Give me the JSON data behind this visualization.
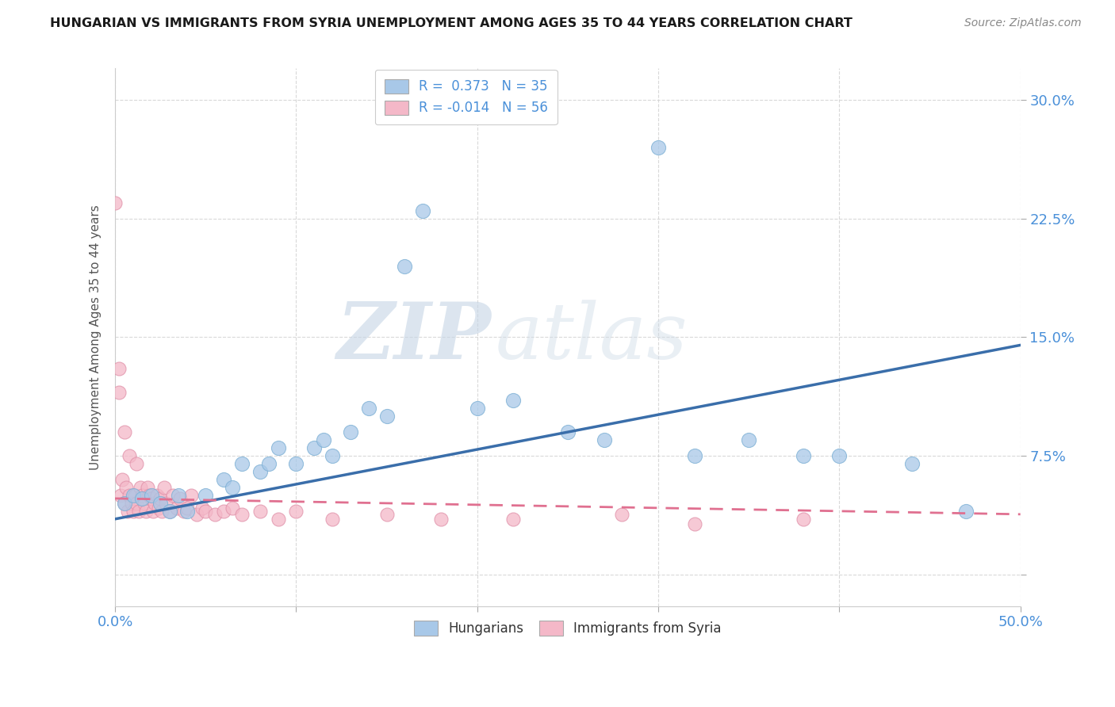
{
  "title": "HUNGARIAN VS IMMIGRANTS FROM SYRIA UNEMPLOYMENT AMONG AGES 35 TO 44 YEARS CORRELATION CHART",
  "source_text": "Source: ZipAtlas.com",
  "ylabel": "Unemployment Among Ages 35 to 44 years",
  "xlim": [
    0.0,
    0.5
  ],
  "ylim": [
    -0.02,
    0.32
  ],
  "yticks": [
    0.0,
    0.075,
    0.15,
    0.225,
    0.3
  ],
  "ytick_labels": [
    "",
    "7.5%",
    "15.0%",
    "22.5%",
    "30.0%"
  ],
  "background_color": "#ffffff",
  "grid_color": "#d0d0d0",
  "watermark_zip": "ZIP",
  "watermark_atlas": "atlas",
  "blue_color": "#a8c8e8",
  "blue_edge_color": "#7bafd4",
  "pink_color": "#f4b8c8",
  "pink_edge_color": "#e090a8",
  "blue_line_color": "#3a6eaa",
  "pink_line_color": "#e07090",
  "legend_blue_r": "R =  0.373",
  "legend_blue_n": "N = 35",
  "legend_pink_r": "R = -0.014",
  "legend_pink_n": "N = 56",
  "blue_scatter_x": [
    0.005,
    0.01,
    0.015,
    0.02,
    0.025,
    0.03,
    0.035,
    0.04,
    0.05,
    0.06,
    0.065,
    0.07,
    0.08,
    0.085,
    0.09,
    0.1,
    0.11,
    0.115,
    0.12,
    0.13,
    0.14,
    0.15,
    0.16,
    0.17,
    0.2,
    0.22,
    0.25,
    0.27,
    0.3,
    0.32,
    0.35,
    0.38,
    0.4,
    0.44,
    0.47
  ],
  "blue_scatter_y": [
    0.045,
    0.05,
    0.048,
    0.05,
    0.045,
    0.04,
    0.05,
    0.04,
    0.05,
    0.06,
    0.055,
    0.07,
    0.065,
    0.07,
    0.08,
    0.07,
    0.08,
    0.085,
    0.075,
    0.09,
    0.105,
    0.1,
    0.195,
    0.23,
    0.105,
    0.11,
    0.09,
    0.085,
    0.27,
    0.075,
    0.085,
    0.075,
    0.075,
    0.07,
    0.04
  ],
  "pink_scatter_x": [
    0.0,
    0.002,
    0.003,
    0.004,
    0.005,
    0.006,
    0.007,
    0.008,
    0.009,
    0.01,
    0.011,
    0.012,
    0.013,
    0.014,
    0.015,
    0.016,
    0.017,
    0.018,
    0.019,
    0.02,
    0.021,
    0.022,
    0.023,
    0.024,
    0.025,
    0.026,
    0.027,
    0.028,
    0.03,
    0.032,
    0.034,
    0.036,
    0.038,
    0.04,
    0.042,
    0.045,
    0.048,
    0.05,
    0.055,
    0.06,
    0.065,
    0.07,
    0.08,
    0.09,
    0.1,
    0.12,
    0.15,
    0.18,
    0.22,
    0.28,
    0.32,
    0.38,
    0.002,
    0.005,
    0.008,
    0.012
  ],
  "pink_scatter_y": [
    0.235,
    0.13,
    0.05,
    0.06,
    0.045,
    0.055,
    0.04,
    0.05,
    0.045,
    0.04,
    0.05,
    0.045,
    0.04,
    0.055,
    0.05,
    0.045,
    0.04,
    0.055,
    0.05,
    0.048,
    0.04,
    0.045,
    0.05,
    0.042,
    0.048,
    0.04,
    0.055,
    0.045,
    0.04,
    0.05,
    0.042,
    0.048,
    0.04,
    0.042,
    0.05,
    0.038,
    0.042,
    0.04,
    0.038,
    0.04,
    0.042,
    0.038,
    0.04,
    0.035,
    0.04,
    0.035,
    0.038,
    0.035,
    0.035,
    0.038,
    0.032,
    0.035,
    0.115,
    0.09,
    0.075,
    0.07
  ],
  "blue_trend_x": [
    0.0,
    0.5
  ],
  "blue_trend_y": [
    0.035,
    0.145
  ],
  "pink_trend_x": [
    0.0,
    0.5
  ],
  "pink_trend_y": [
    0.048,
    0.038
  ]
}
